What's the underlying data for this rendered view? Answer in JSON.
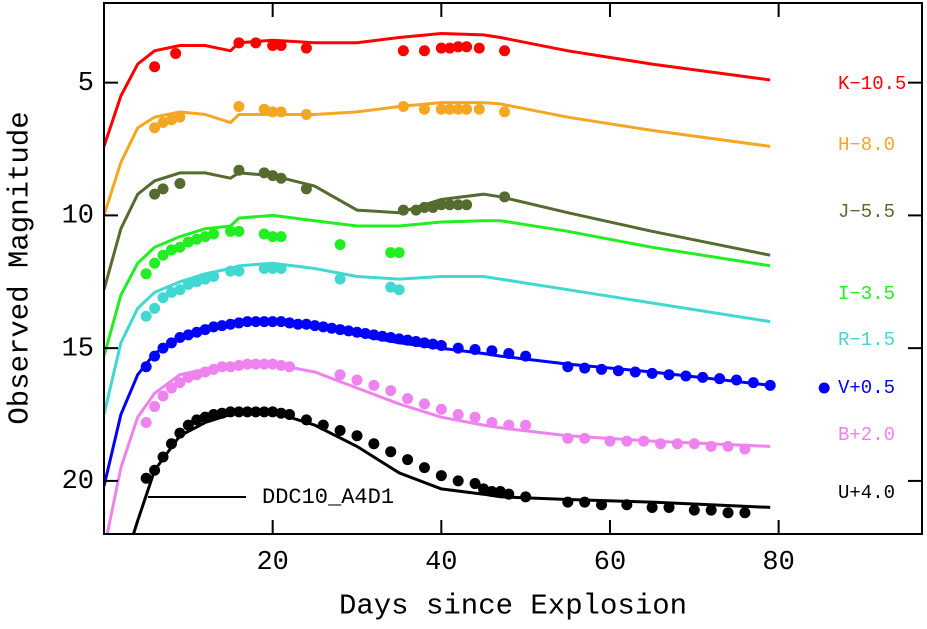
{
  "chart_data": {
    "type": "line",
    "xlabel": "Days since Explosion",
    "ylabel": "Observed Magnitude",
    "model_name": "DDC10_A4D1",
    "xlim": [
      0,
      97
    ],
    "ylim": [
      2,
      22
    ],
    "y_inverted": true,
    "xticks": [
      20,
      40,
      60,
      80
    ],
    "yticks": [
      5,
      10,
      15,
      20
    ],
    "model_x": [
      0,
      2,
      4,
      6,
      9,
      12,
      15,
      16,
      20,
      25,
      30,
      35,
      40,
      45,
      47,
      55,
      65,
      79
    ],
    "series": [
      {
        "name": "K−10.5",
        "color": "#ff0000",
        "model": [
          7.4,
          5.5,
          4.3,
          3.8,
          3.6,
          3.6,
          3.8,
          3.5,
          3.4,
          3.5,
          3.5,
          3.3,
          3.15,
          3.2,
          3.3,
          3.8,
          4.3,
          4.9
        ],
        "obs_x": [
          6,
          8.5,
          16,
          18,
          20,
          21,
          24,
          35.5,
          38,
          40,
          41,
          42,
          43,
          44.5,
          47.5
        ],
        "obs_values": [
          4.4,
          3.9,
          3.5,
          3.5,
          3.6,
          3.6,
          3.7,
          3.8,
          3.8,
          3.7,
          3.7,
          3.65,
          3.65,
          3.7,
          3.8
        ]
      },
      {
        "name": "H−8.0",
        "color": "#f5a623",
        "model": [
          10.0,
          8.0,
          6.7,
          6.3,
          6.1,
          6.2,
          6.5,
          6.2,
          6.2,
          6.2,
          6.1,
          5.9,
          5.75,
          5.75,
          5.8,
          6.3,
          6.8,
          7.4
        ],
        "obs_x": [
          6,
          7,
          8,
          9,
          16,
          19,
          20,
          21,
          24,
          35.5,
          38,
          40,
          41,
          42,
          43,
          44.5,
          47.5
        ],
        "obs_values": [
          6.7,
          6.5,
          6.4,
          6.3,
          5.9,
          6.0,
          6.1,
          6.1,
          6.2,
          5.9,
          6.0,
          6.0,
          6.0,
          6.0,
          6.0,
          6.0,
          6.1
        ]
      },
      {
        "name": "J−5.5",
        "color": "#556b2f",
        "model": [
          12.8,
          10.5,
          9.2,
          8.7,
          8.4,
          8.4,
          8.6,
          8.4,
          8.5,
          8.9,
          9.8,
          9.9,
          9.4,
          9.2,
          9.3,
          9.9,
          10.6,
          11.5
        ],
        "obs_x": [
          6,
          7,
          9,
          16,
          19,
          20,
          21,
          24,
          35.5,
          37,
          38,
          39,
          40,
          41,
          42,
          43,
          47.5
        ],
        "obs_values": [
          9.2,
          9.0,
          8.8,
          8.3,
          8.4,
          8.5,
          8.6,
          9.0,
          9.8,
          9.8,
          9.7,
          9.7,
          9.6,
          9.6,
          9.6,
          9.6,
          9.3
        ]
      },
      {
        "name": "I−3.5",
        "color": "#22ee22",
        "model": [
          15.3,
          13.0,
          11.8,
          11.2,
          10.8,
          10.5,
          10.4,
          10.1,
          10.0,
          10.2,
          10.4,
          10.4,
          10.25,
          10.2,
          10.2,
          10.6,
          11.2,
          11.9
        ],
        "obs_x": [
          5,
          6,
          7,
          8,
          9,
          10,
          11,
          12,
          13,
          15,
          16,
          19,
          20,
          21,
          28,
          34,
          35
        ],
        "obs_values": [
          12.2,
          11.8,
          11.5,
          11.3,
          11.2,
          11.0,
          10.9,
          10.8,
          10.7,
          10.6,
          10.6,
          10.7,
          10.8,
          10.8,
          11.1,
          11.4,
          11.4
        ]
      },
      {
        "name": "R−1.5",
        "color": "#40d8d0",
        "model": [
          17.5,
          14.8,
          13.5,
          12.9,
          12.5,
          12.2,
          12.0,
          11.9,
          11.8,
          12.0,
          12.3,
          12.4,
          12.3,
          12.3,
          12.4,
          12.8,
          13.3,
          14.0
        ],
        "obs_x": [
          5,
          6,
          7,
          8,
          9,
          10,
          11,
          12,
          13,
          15,
          16,
          19,
          20,
          21,
          28,
          34,
          35
        ],
        "obs_values": [
          13.8,
          13.5,
          13.1,
          12.9,
          12.8,
          12.6,
          12.5,
          12.4,
          12.3,
          12.1,
          12.1,
          12.0,
          12.0,
          12.0,
          12.4,
          12.7,
          12.8
        ]
      },
      {
        "name": "V+0.5",
        "color": "#0000ff",
        "model": [
          20.2,
          17.5,
          16.0,
          15.2,
          14.6,
          14.3,
          14.1,
          14.05,
          14.0,
          14.2,
          14.5,
          14.8,
          15.0,
          15.2,
          15.3,
          15.6,
          15.9,
          16.4
        ],
        "obs_x": [
          5,
          6,
          7,
          8,
          9,
          10,
          11,
          12,
          13,
          14,
          15,
          16,
          17,
          18,
          19,
          20,
          21,
          22,
          23,
          24,
          25,
          26,
          27,
          28,
          29,
          30,
          31,
          32,
          33,
          34,
          35,
          36,
          37,
          38,
          39,
          40,
          42,
          44,
          46,
          48,
          50,
          55,
          57,
          59,
          61,
          63,
          65,
          67,
          69,
          71,
          73,
          75,
          77,
          79,
          85.4
        ],
        "obs_values": [
          15.7,
          15.3,
          15.0,
          14.8,
          14.6,
          14.5,
          14.4,
          14.3,
          14.2,
          14.15,
          14.1,
          14.05,
          14.0,
          14.0,
          14.0,
          14.0,
          14.0,
          14.05,
          14.1,
          14.1,
          14.15,
          14.2,
          14.25,
          14.3,
          14.35,
          14.4,
          14.45,
          14.5,
          14.55,
          14.6,
          14.65,
          14.7,
          14.75,
          14.8,
          14.85,
          14.9,
          15.0,
          15.05,
          15.1,
          15.2,
          15.3,
          15.7,
          15.75,
          15.8,
          15.85,
          15.9,
          15.95,
          16.0,
          16.05,
          16.1,
          16.15,
          16.2,
          16.3,
          16.4,
          16.5
        ]
      },
      {
        "name": "B+2.0",
        "color": "#ee82ee",
        "model": [
          22.6,
          19.5,
          17.6,
          16.7,
          16.0,
          15.8,
          15.65,
          15.6,
          15.6,
          15.9,
          16.5,
          17.1,
          17.6,
          17.9,
          18.0,
          18.3,
          18.5,
          18.7
        ],
        "obs_x": [
          5,
          6,
          7,
          8,
          9,
          10,
          11,
          12,
          13,
          14,
          15,
          16,
          17,
          18,
          19,
          20,
          21,
          22,
          28,
          30,
          32,
          34,
          36,
          38,
          40,
          42,
          44,
          46,
          48,
          50,
          55,
          57,
          60,
          62,
          64,
          66,
          68,
          70,
          72,
          74,
          76
        ],
        "obs_values": [
          17.8,
          17.2,
          16.8,
          16.5,
          16.3,
          16.1,
          16.0,
          15.9,
          15.8,
          15.7,
          15.7,
          15.65,
          15.6,
          15.6,
          15.6,
          15.6,
          15.65,
          15.7,
          16.0,
          16.2,
          16.4,
          16.6,
          16.9,
          17.1,
          17.3,
          17.5,
          17.6,
          17.8,
          17.9,
          17.9,
          18.4,
          18.4,
          18.5,
          18.5,
          18.5,
          18.6,
          18.6,
          18.6,
          18.7,
          18.7,
          18.8
        ]
      },
      {
        "name": "U+4.0",
        "color": "#000000",
        "model": [
          25,
          23.5,
          21.5,
          19.6,
          18.3,
          17.8,
          17.5,
          17.4,
          17.4,
          17.9,
          18.7,
          19.7,
          20.3,
          20.5,
          20.6,
          20.7,
          20.8,
          21.0
        ],
        "obs_x": [
          5,
          6,
          7,
          8,
          9,
          10,
          11,
          12,
          13,
          14,
          15,
          16,
          17,
          18,
          19,
          20,
          21,
          22,
          24,
          26,
          28,
          30,
          32,
          34,
          36,
          38,
          40,
          42,
          44,
          45,
          46,
          47,
          48,
          50,
          55,
          57,
          59,
          62,
          65,
          67,
          70,
          72,
          74,
          76
        ],
        "obs_values": [
          19.9,
          19.6,
          19.1,
          18.6,
          18.2,
          17.9,
          17.7,
          17.6,
          17.5,
          17.45,
          17.4,
          17.4,
          17.4,
          17.4,
          17.4,
          17.4,
          17.45,
          17.5,
          17.7,
          17.9,
          18.1,
          18.3,
          18.6,
          18.9,
          19.2,
          19.5,
          19.8,
          20.0,
          20.1,
          20.3,
          20.4,
          20.4,
          20.5,
          20.6,
          20.8,
          20.8,
          20.9,
          20.9,
          21.0,
          21.0,
          21.1,
          21.1,
          21.2,
          21.2
        ]
      }
    ]
  }
}
